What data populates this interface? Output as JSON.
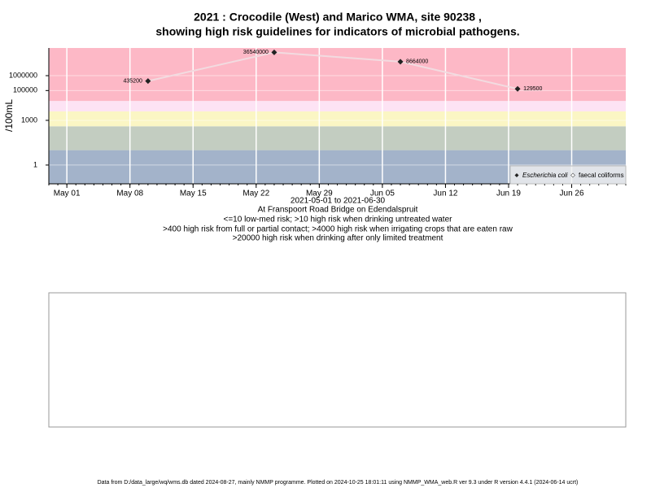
{
  "chart_data": {
    "type": "line",
    "title": [
      "2021 : Crocodile (West) and Marico WMA, site 90238 ,",
      "showing high risk guidelines for indicators of microbial pathogens."
    ],
    "y_label": "/100mL",
    "log_y": true,
    "ylim": [
      0.055,
      72000000
    ],
    "yticks": [
      1,
      1000,
      100000,
      1000000
    ],
    "xlim": [
      "2021-04-29",
      "2021-07-02"
    ],
    "xticks": [
      {
        "value": "2021-05-01",
        "label": "May 01"
      },
      {
        "value": "2021-05-08",
        "label": "May 08"
      },
      {
        "value": "2021-05-15",
        "label": "May 15"
      },
      {
        "value": "2021-05-22",
        "label": "May 22"
      },
      {
        "value": "2021-05-29",
        "label": "May 29"
      },
      {
        "value": "2021-06-05",
        "label": "Jun 05"
      },
      {
        "value": "2021-06-12",
        "label": "Jun 12"
      },
      {
        "value": "2021-06-19",
        "label": "Jun 19"
      },
      {
        "value": "2021-06-26",
        "label": "Jun 26"
      }
    ],
    "grid": true,
    "thresholds": [
      10,
      400,
      4000,
      20000
    ],
    "band_colors": [
      "#a3b3ca",
      "#c3cdc1",
      "#fbf6c4",
      "#fde3f4",
      "#fdb8c6"
    ],
    "x": [
      "2021-05-10",
      "2021-05-24",
      "2021-06-07",
      "2021-06-20"
    ],
    "series": [
      {
        "name": "Escherichia coli",
        "color": "#222222",
        "line_color": "#f2dbe0",
        "values": [
          435200,
          36540000,
          8664000,
          129500
        ]
      }
    ],
    "extra_legend_entries": [
      "faecal coliforms"
    ],
    "legend_position": "lower right",
    "x_label": "2021-05-01 to 2021-06-30",
    "notes": [
      "At Franspoort Road Bridge on Edendalspruit",
      "<=10 low-med risk; >10 high risk when drinking untreated water",
      ">400 high risk from full or partial contact; >4000 high risk when irrigating crops that are eaten raw",
      ">20000 high risk when drinking after only limited treatment"
    ],
    "footer": "Data from D:/data_large/wq/wms.db dated 2024-08-27, mainly NMMP programme. Plotted on 2024-10-25 18:01:11 using NMMP_WMA_web.R ver 9.3 under R version 4.4.1 (2024-06-14 ucrt)"
  }
}
